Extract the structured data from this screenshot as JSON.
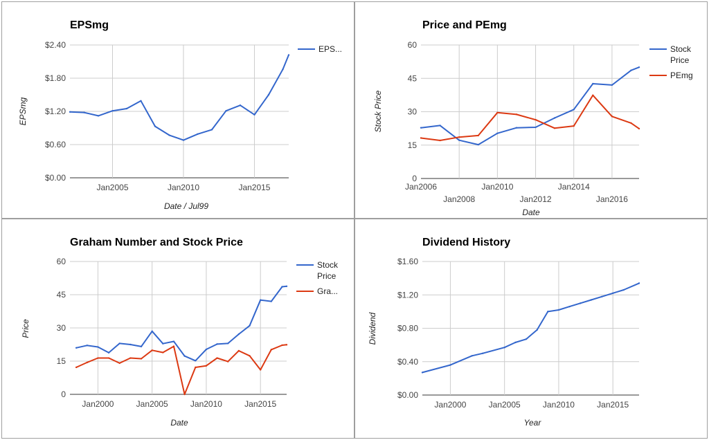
{
  "chart_data": [
    {
      "type": "line",
      "title": "EPSmg",
      "xlabel": "Date / Jul99",
      "ylabel": "EPSmg",
      "ylim": [
        0,
        2.4
      ],
      "yticks": [
        "$0.00",
        "$0.60",
        "$1.20",
        "$1.80",
        "$2.40"
      ],
      "xticks": [
        "Jan2005",
        "Jan2010",
        "Jan2015"
      ],
      "xlim": [
        "2002-01",
        "2017-06"
      ],
      "legend_position": "right",
      "grid": true,
      "series": [
        {
          "name": "EPS...",
          "color": "#3366cc",
          "x": [
            "2002-01",
            "2003-01",
            "2004-01",
            "2005-01",
            "2006-01",
            "2007-01",
            "2008-01",
            "2009-01",
            "2010-01",
            "2011-01",
            "2012-01",
            "2013-01",
            "2014-01",
            "2015-01",
            "2016-01",
            "2017-01",
            "2017-06"
          ],
          "values": [
            1.19,
            1.18,
            1.12,
            1.21,
            1.25,
            1.39,
            0.93,
            0.77,
            0.68,
            0.79,
            0.87,
            1.21,
            1.31,
            1.14,
            1.5,
            1.96,
            2.22
          ]
        }
      ]
    },
    {
      "type": "line",
      "title": "Price and PEmg",
      "xlabel": "Date",
      "ylabel": "Stock Price",
      "ylim": [
        0,
        60
      ],
      "yticks": [
        "0",
        "15",
        "30",
        "45",
        "60"
      ],
      "xticks_upper": [
        "Jan2006",
        "Jan2010",
        "Jan2014"
      ],
      "xticks_lower": [
        "Jan2008",
        "Jan2012",
        "Jan2016"
      ],
      "xlim": [
        "2006-01",
        "2017-06"
      ],
      "legend_position": "right",
      "grid": true,
      "series": [
        {
          "name": "Stock Price",
          "color": "#3366cc",
          "x": [
            "2006-01",
            "2007-01",
            "2008-01",
            "2009-01",
            "2010-01",
            "2011-01",
            "2012-01",
            "2013-01",
            "2014-01",
            "2015-01",
            "2016-01",
            "2017-01",
            "2017-06"
          ],
          "values": [
            22.8,
            23.8,
            17.2,
            15.2,
            20.3,
            22.8,
            23.0,
            27.2,
            31.0,
            42.6,
            42.0,
            48.6,
            50.0
          ]
        },
        {
          "name": "PEmg",
          "color": "#dc3912",
          "x": [
            "2006-01",
            "2007-01",
            "2008-01",
            "2009-01",
            "2010-01",
            "2011-01",
            "2012-01",
            "2013-01",
            "2014-01",
            "2015-01",
            "2016-01",
            "2017-01",
            "2017-06"
          ],
          "values": [
            18.2,
            17.1,
            18.6,
            19.3,
            29.6,
            28.8,
            26.4,
            22.6,
            23.6,
            37.4,
            27.9,
            24.9,
            22.4
          ]
        }
      ]
    },
    {
      "type": "line",
      "title": "Graham Number and Stock Price",
      "xlabel": "Date",
      "ylabel": "Price",
      "ylim": [
        0,
        60
      ],
      "yticks": [
        "0",
        "15",
        "30",
        "45",
        "60"
      ],
      "xticks": [
        "Jan2000",
        "Jan2005",
        "Jan2010",
        "Jan2015"
      ],
      "xlim": [
        "1997-06",
        "2017-06"
      ],
      "legend_position": "right",
      "grid": true,
      "series": [
        {
          "name": "Stock Price",
          "color": "#3366cc",
          "x": [
            "1998-01",
            "1999-01",
            "2000-01",
            "2001-01",
            "2002-01",
            "2003-01",
            "2004-01",
            "2005-01",
            "2006-01",
            "2007-01",
            "2008-01",
            "2009-01",
            "2010-01",
            "2011-01",
            "2012-01",
            "2013-01",
            "2014-01",
            "2015-01",
            "2016-01",
            "2017-01",
            "2017-06"
          ],
          "values": [
            21.0,
            22.1,
            21.4,
            18.8,
            23.0,
            22.5,
            21.6,
            28.5,
            22.9,
            23.9,
            17.3,
            15.2,
            20.3,
            22.7,
            23.0,
            27.2,
            31.0,
            42.6,
            42.0,
            48.6,
            48.8
          ]
        },
        {
          "name": "Gra...",
          "color": "#dc3912",
          "x": [
            "1998-01",
            "1999-01",
            "2000-01",
            "2001-01",
            "2002-01",
            "2003-01",
            "2004-01",
            "2005-01",
            "2006-01",
            "2007-01",
            "2008-01",
            "2009-01",
            "2010-01",
            "2011-01",
            "2012-01",
            "2013-01",
            "2014-01",
            "2015-01",
            "2016-01",
            "2017-01",
            "2017-06"
          ],
          "values": [
            12.2,
            14.4,
            16.4,
            16.4,
            14.1,
            16.4,
            16.1,
            19.9,
            18.9,
            21.7,
            0,
            12.2,
            12.9,
            16.4,
            14.8,
            19.7,
            17.4,
            11.1,
            20.2,
            22.2,
            22.4
          ]
        }
      ]
    },
    {
      "type": "line",
      "title": "Dividend History",
      "xlabel": "Year",
      "ylabel": "Dividend",
      "ylim": [
        0,
        1.6
      ],
      "yticks": [
        "$0.00",
        "$0.40",
        "$0.80",
        "$1.20",
        "$1.60"
      ],
      "xticks": [
        "Jan2000",
        "Jan2005",
        "Jan2010",
        "Jan2015"
      ],
      "xlim": [
        "1997-06",
        "2017-06"
      ],
      "grid": true,
      "series": [
        {
          "color": "#3366cc",
          "x": [
            "1997-06",
            "2000-01",
            "2002-01",
            "2003-01",
            "2005-01",
            "2006-01",
            "2007-01",
            "2008-01",
            "2009-01",
            "2010-01",
            "2011-01",
            "2012-01",
            "2013-01",
            "2014-01",
            "2015-01",
            "2016-01",
            "2017-06"
          ],
          "values": [
            0.27,
            0.36,
            0.47,
            0.5,
            0.57,
            0.63,
            0.67,
            0.78,
            1.0,
            1.02,
            1.06,
            1.1,
            1.14,
            1.18,
            1.22,
            1.26,
            1.34
          ]
        }
      ]
    }
  ]
}
